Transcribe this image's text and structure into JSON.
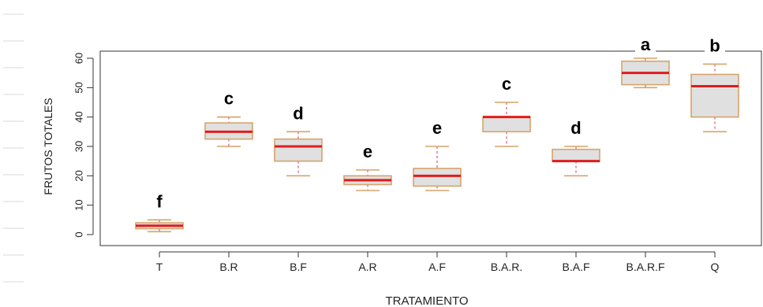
{
  "chart_data": {
    "type": "boxplot",
    "xlabel": "TRATAMIENTO",
    "ylabel": "FRUTOS TOTALES",
    "ylim": [
      0,
      60
    ],
    "yticks": [
      0,
      10,
      20,
      30,
      40,
      50,
      60
    ],
    "grid": false,
    "categories": [
      "T",
      "B.R",
      "B.F",
      "A.R",
      "A.F",
      "B.A.R.",
      "B.A.F",
      "B.A.R.F",
      "Q"
    ],
    "boxes": [
      {
        "category": "T",
        "min": 1,
        "q1": 2,
        "median": 3,
        "q3": 4,
        "max": 5,
        "letter": "f"
      },
      {
        "category": "B.R",
        "min": 30,
        "q1": 32.5,
        "median": 35,
        "q3": 38,
        "max": 40,
        "letter": "c"
      },
      {
        "category": "B.F",
        "min": 20,
        "q1": 25,
        "median": 30,
        "q3": 32.5,
        "max": 35,
        "letter": "d"
      },
      {
        "category": "A.R",
        "min": 15,
        "q1": 17,
        "median": 18.5,
        "q3": 20,
        "max": 22,
        "letter": "e"
      },
      {
        "category": "A.F",
        "min": 15,
        "q1": 16.5,
        "median": 20,
        "q3": 22.5,
        "max": 30,
        "letter": "e"
      },
      {
        "category": "B.A.R.",
        "min": 30,
        "q1": 35,
        "median": 40,
        "q3": 40,
        "max": 45,
        "letter": "c"
      },
      {
        "category": "B.A.F",
        "min": 20,
        "q1": 25,
        "median": 25,
        "q3": 29,
        "max": 30,
        "letter": "d"
      },
      {
        "category": "B.A.R.F",
        "min": 50,
        "q1": 51,
        "median": 55,
        "q3": 59,
        "max": 60,
        "letter": "a"
      },
      {
        "category": "Q",
        "min": 35,
        "q1": 40,
        "median": 50.5,
        "q3": 54.5,
        "max": 58,
        "letter": "b"
      }
    ],
    "colors": {
      "box_fill": "#e0e0e0",
      "box_border": "#d6a36a",
      "median": "#e01b1b",
      "whisker": "#d9687a",
      "axis": "#333333"
    }
  }
}
